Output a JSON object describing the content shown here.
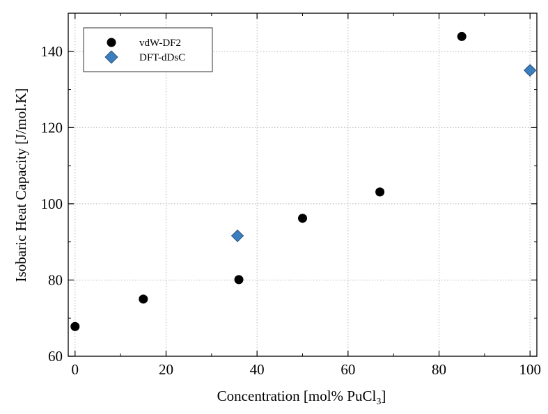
{
  "chart_data": {
    "type": "scatter",
    "xlabel_main": "Concentration [mol% PuCl",
    "xlabel_sub": "3",
    "xlabel_close": "]",
    "ylabel": "Isobaric Heat Capacity [J/mol.K]",
    "xlim": [
      -1.5,
      101.5
    ],
    "ylim": [
      60,
      150
    ],
    "xticks": [
      0,
      20,
      40,
      60,
      80,
      100
    ],
    "yticks": [
      60,
      80,
      100,
      120,
      140
    ],
    "grid": true,
    "legend_position": "top-left",
    "series": [
      {
        "name": "vdW-DF2",
        "marker": "circle",
        "color": "#000000",
        "points": [
          {
            "x": 0,
            "y": 67.8
          },
          {
            "x": 15,
            "y": 75.0
          },
          {
            "x": 36,
            "y": 80.1
          },
          {
            "x": 50,
            "y": 96.2
          },
          {
            "x": 67,
            "y": 103.1
          },
          {
            "x": 85,
            "y": 143.9
          },
          {
            "x": 100,
            "y": 135.0
          }
        ]
      },
      {
        "name": "DFT-dDsC",
        "marker": "diamond",
        "color": "#3b7ebf",
        "points": [
          {
            "x": 35.7,
            "y": 91.6
          },
          {
            "x": 100,
            "y": 135.0
          }
        ]
      }
    ]
  }
}
